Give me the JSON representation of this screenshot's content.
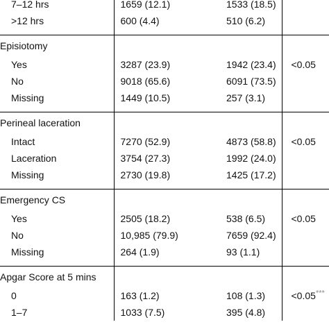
{
  "table": {
    "rows": [
      {
        "type": "sub",
        "label": "7–12 hrs",
        "col1": "1659 (12.1)",
        "col2": "1533 (18.5)",
        "p": ""
      },
      {
        "type": "sub",
        "label": ">12 hrs",
        "col1": "600 (4.4)",
        "col2": "510 (6.2)",
        "p": ""
      },
      {
        "type": "gap"
      },
      {
        "type": "group",
        "label": "Episiotomy",
        "sep": true
      },
      {
        "type": "sub",
        "label": "Yes",
        "col1": "3287 (23.9)",
        "col2": "1942 (23.4)",
        "p": "<0.05"
      },
      {
        "type": "sub",
        "label": "No",
        "col1": "9018 (65.6)",
        "col2": "6091 (73.5)",
        "p": ""
      },
      {
        "type": "sub",
        "label": "Missing",
        "col1": "1449 (10.5)",
        "col2": "257 (3.1)",
        "p": ""
      },
      {
        "type": "gap"
      },
      {
        "type": "group",
        "label": "Perineal laceration",
        "sep": true
      },
      {
        "type": "sub",
        "label": "Intact",
        "col1": "7270 (52.9)",
        "col2": "4873 (58.8)",
        "p": "<0.05"
      },
      {
        "type": "sub",
        "label": "Laceration",
        "col1": "3754 (27.3)",
        "col2": "1992 (24.0)",
        "p": ""
      },
      {
        "type": "sub",
        "label": "Missing",
        "col1": "2730 (19.8)",
        "col2": "1425 (17.2)",
        "p": ""
      },
      {
        "type": "gap"
      },
      {
        "type": "group",
        "label": "Emergency CS",
        "sep": true
      },
      {
        "type": "sub",
        "label": "Yes",
        "col1": "2505 (18.2)",
        "col2": "538 (6.5)",
        "p": "<0.05"
      },
      {
        "type": "sub",
        "label": "No",
        "col1": "10,985 (79.9)",
        "col2": "7659 (92.4)",
        "p": ""
      },
      {
        "type": "sub",
        "label": "Missing",
        "col1": "264 (1.9)",
        "col2": "93 (1.1)",
        "p": ""
      },
      {
        "type": "gap"
      },
      {
        "type": "group",
        "label": "Apgar Score at 5 mins",
        "sep": true
      },
      {
        "type": "sub",
        "label": "0",
        "col1": "163 (1.2)",
        "col2": "108 (1.3)",
        "p": "<0.05",
        "p_mark": "***"
      },
      {
        "type": "sub",
        "label": "1–7",
        "col1": "1033 (7.5)",
        "col2": "395 (4.8)",
        "p": ""
      }
    ]
  }
}
